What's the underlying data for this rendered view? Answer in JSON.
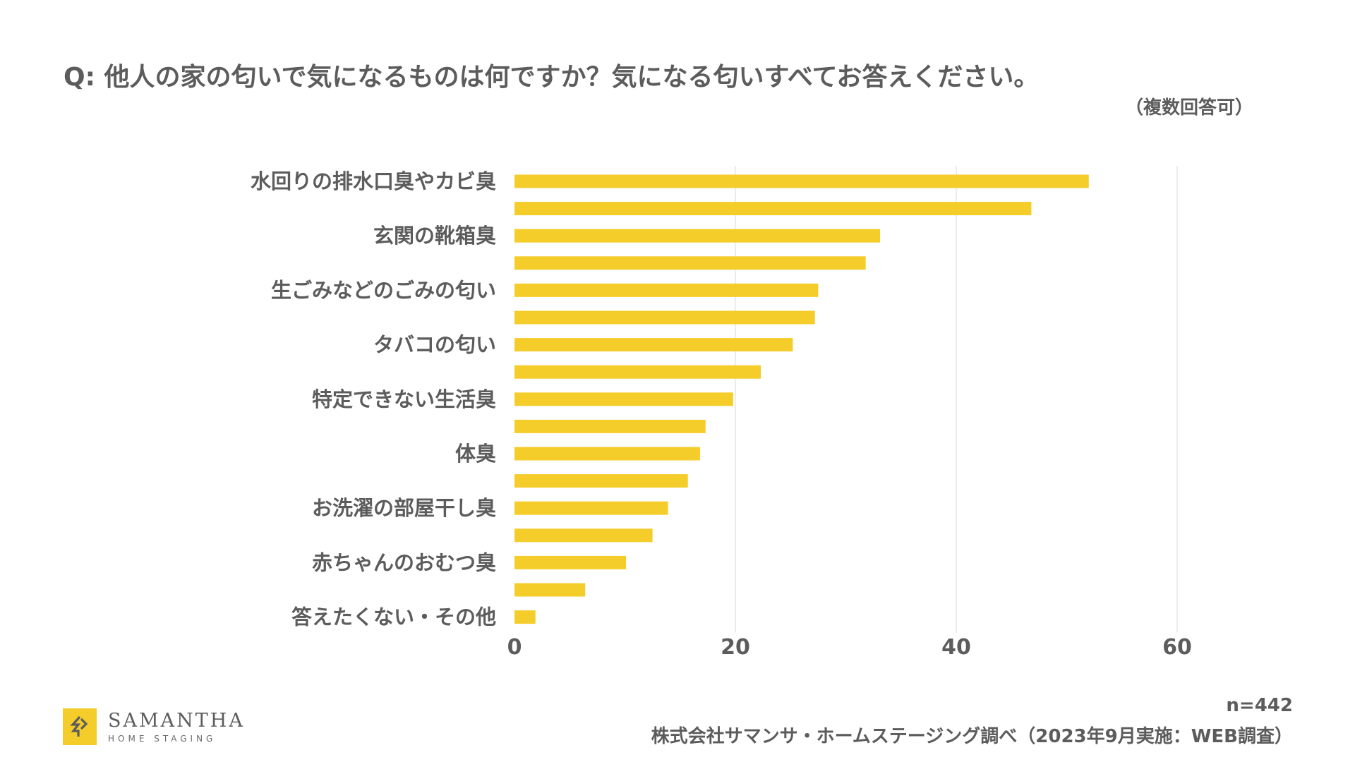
{
  "header": {
    "title": "Q: 他人の家の匂いで気になるものは何ですか？気になる匂いすべてお答えください。",
    "subtitle": "（複数回答可）"
  },
  "footer": {
    "n": "n=442",
    "source": "株式会社サマンサ・ホームステージング調べ（2023年9月実施：WEB調査）"
  },
  "logo": {
    "name": "SAMANTHA",
    "sub": "HOME STAGING"
  },
  "colors": {
    "bar": "#f5cd2a",
    "grid": "#d9d9d9",
    "text": "#5c5c5c"
  },
  "chart_data": {
    "type": "bar",
    "orientation": "horizontal",
    "categories": [
      "水回りの排水口臭やカビ臭",
      "",
      "玄関の靴箱臭",
      "",
      "生ごみなどのごみの匂い",
      "",
      "タバコの匂い",
      "",
      "特定できない生活臭",
      "",
      "体臭",
      "",
      "お洗濯の部屋干し臭",
      "",
      "赤ちゃんのおむつ臭",
      "",
      "答えたくない・その他"
    ],
    "values": [
      52.0,
      46.8,
      33.1,
      31.8,
      27.5,
      27.2,
      25.2,
      22.3,
      19.8,
      17.3,
      16.8,
      15.7,
      13.9,
      12.5,
      10.1,
      6.4,
      1.9
    ],
    "xlim": [
      0,
      60
    ],
    "xticks": [
      0,
      20,
      40,
      60
    ],
    "grid": true,
    "legend": "none"
  }
}
